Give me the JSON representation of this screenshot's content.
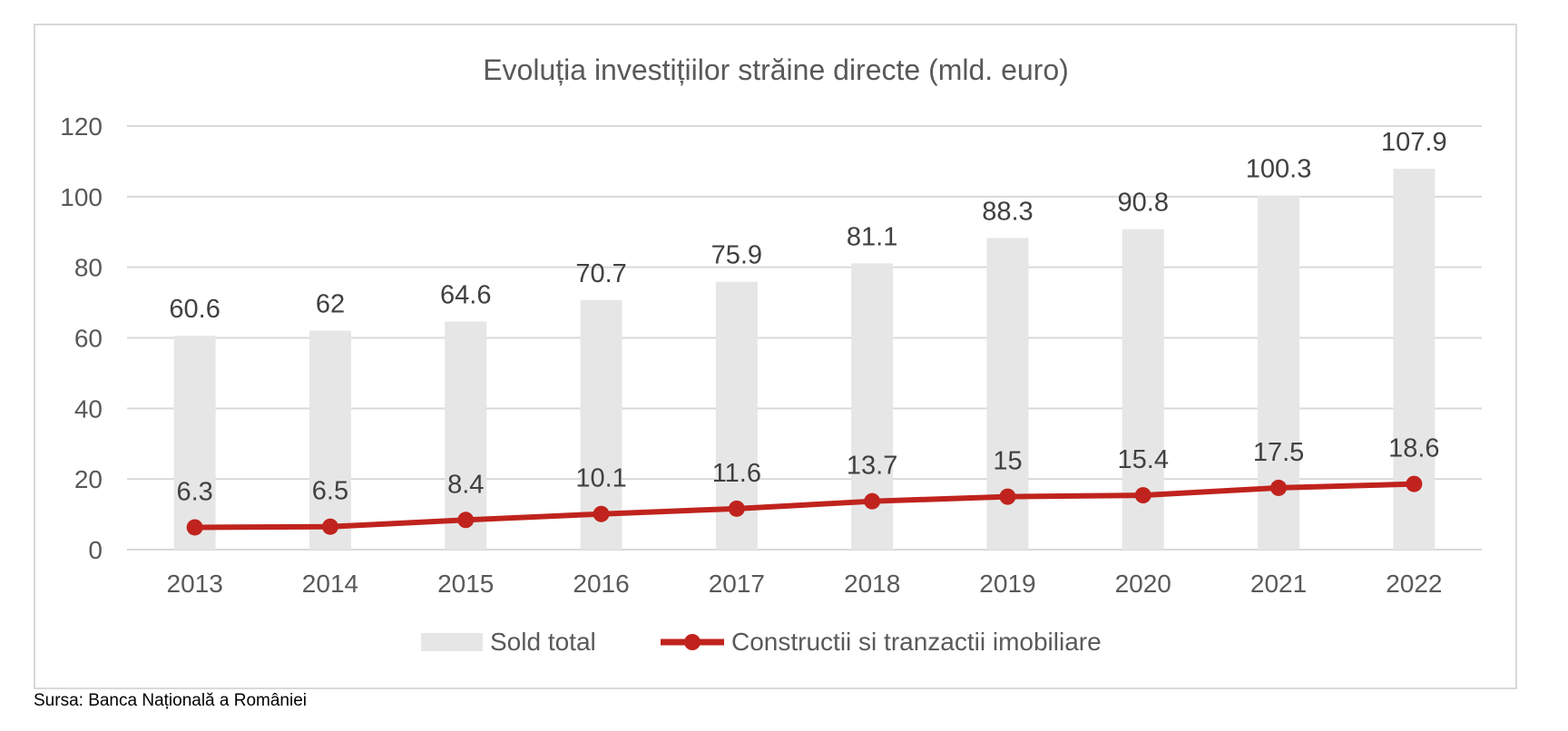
{
  "chart_data": {
    "type": "bar+line",
    "title": "Evoluția investițiilor străine directe (mld. euro)",
    "categories": [
      "2013",
      "2014",
      "2015",
      "2016",
      "2017",
      "2018",
      "2019",
      "2020",
      "2021",
      "2022"
    ],
    "series": [
      {
        "name": "Sold total",
        "kind": "bar",
        "color": "#e6e6e6",
        "values": [
          60.6,
          62,
          64.6,
          70.7,
          75.9,
          81.1,
          88.3,
          90.8,
          100.3,
          107.9
        ],
        "labels": [
          "60.6",
          "62",
          "64.6",
          "70.7",
          "75.9",
          "81.1",
          "88.3",
          "90.8",
          "100.3",
          "107.9"
        ]
      },
      {
        "name": "Constructii si tranzactii imobiliare",
        "kind": "line",
        "color": "#c0231d",
        "values": [
          6.3,
          6.5,
          8.4,
          10.1,
          11.6,
          13.7,
          15,
          15.4,
          17.5,
          18.6
        ],
        "labels": [
          "6.3",
          "6.5",
          "8.4",
          "10.1",
          "11.6",
          "13.7",
          "15",
          "15.4",
          "17.5",
          "18.6"
        ]
      }
    ],
    "y_ticks": [
      "0",
      "20",
      "40",
      "60",
      "80",
      "100",
      "120"
    ],
    "ylim": [
      0,
      120
    ],
    "grid": true,
    "legend_position": "bottom"
  },
  "source_note": "Sursa: Banca Națională a României",
  "colors": {
    "grid": "#d9d9d9",
    "text": "#595959",
    "border": "#d9d9d9"
  }
}
